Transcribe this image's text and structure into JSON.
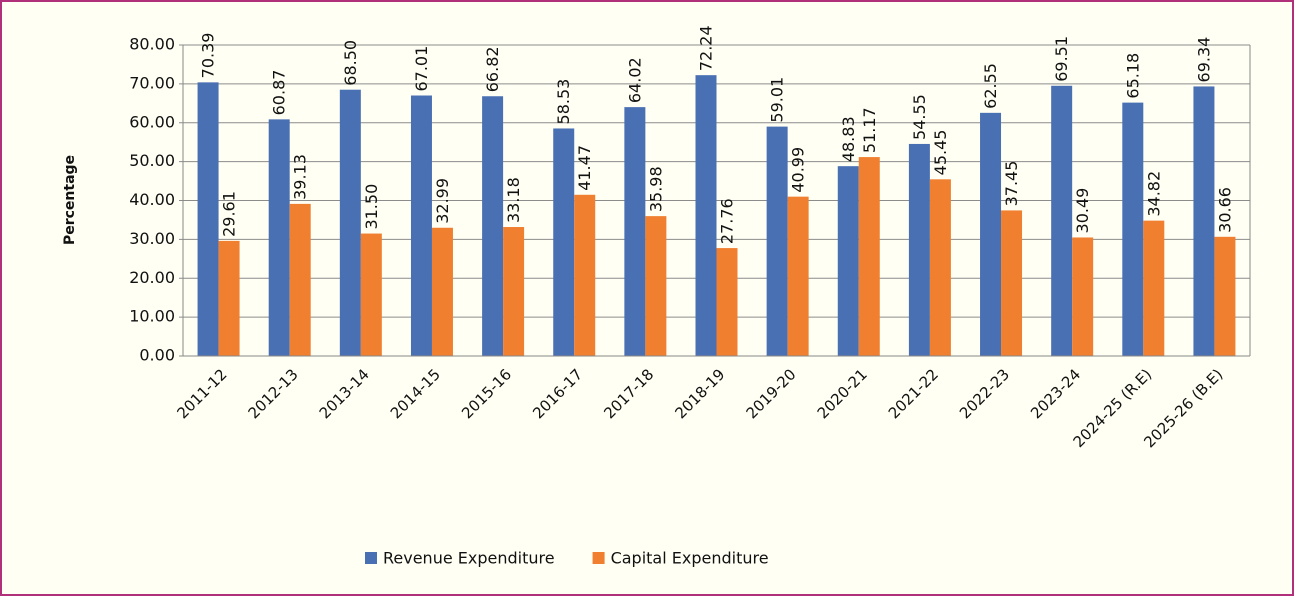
{
  "chart_data": {
    "type": "bar",
    "y_label": "Percentage",
    "categories": [
      "2011-12",
      "2012-13",
      "2013-14",
      "2014-15",
      "2015-16",
      "2016-17",
      "2017-18",
      "2018-19",
      "2019-20",
      "2020-21",
      "2021-22",
      "2022-23",
      "2023-24",
      "2024-25 (R.E)",
      "2025-26 (B.E)"
    ],
    "series": [
      {
        "name": "Revenue Expenditure",
        "color": "#4a70b4",
        "values": [
          70.39,
          60.87,
          68.5,
          67.01,
          66.82,
          58.53,
          64.02,
          72.24,
          59.01,
          48.83,
          54.55,
          62.55,
          69.51,
          65.18,
          69.34
        ],
        "value_labels": [
          "70.39",
          "60.87",
          "68.50",
          "67.01",
          "66.82",
          "58.53",
          "64.02",
          "72.24",
          "59.01",
          "48.83",
          "54.55",
          "62.55",
          "69.51",
          "65.18",
          "69.34"
        ]
      },
      {
        "name": "Capital Expenditure",
        "color": "#f08030",
        "values": [
          29.61,
          39.13,
          31.5,
          32.99,
          33.18,
          41.47,
          35.98,
          27.76,
          40.99,
          51.17,
          45.45,
          37.45,
          30.49,
          34.82,
          30.66
        ],
        "value_labels": [
          "29.61",
          "39.13",
          "31.50",
          "32.99",
          "33.18",
          "41.47",
          "35.98",
          "27.76",
          "40.99",
          "51.17",
          "45.45",
          "37.45",
          "30.49",
          "34.82",
          "30.66"
        ]
      }
    ],
    "ylim": [
      0,
      80
    ],
    "yticks": [
      {
        "value": 0,
        "label": "0.00"
      },
      {
        "value": 10,
        "label": "10.00"
      },
      {
        "value": 20,
        "label": "20.00"
      },
      {
        "value": 30,
        "label": "30.00"
      },
      {
        "value": 40,
        "label": "40.00"
      },
      {
        "value": 50,
        "label": "50.00"
      },
      {
        "value": 60,
        "label": "60.00"
      },
      {
        "value": 70,
        "label": "70.00"
      },
      {
        "value": 80,
        "label": "80.00"
      }
    ],
    "grid": true,
    "legend": "bottom"
  }
}
